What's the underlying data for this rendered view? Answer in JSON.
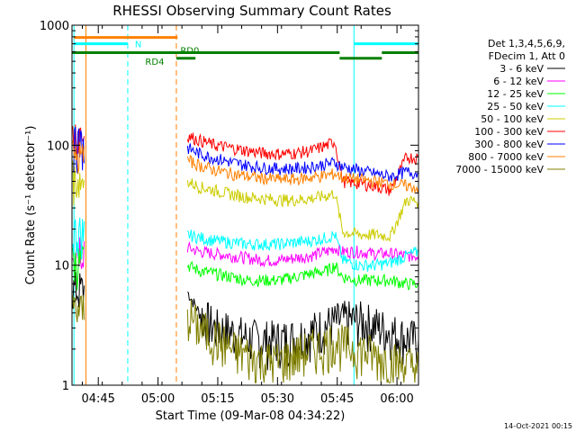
{
  "chart_data": {
    "type": "line",
    "title": "RHESSI Observing Summary Count Rates",
    "xlabel": "Start Time (09-Mar-08 04:34:22)",
    "ylabel": "Count Rate (s⁻¹ detector⁻¹)",
    "ylog": true,
    "ylim": [
      1,
      1000
    ],
    "xlim_minutes": [
      4.0,
      91.0
    ],
    "x_ticks": [
      {
        "label": "04:45",
        "min": 10.6
      },
      {
        "label": "05:00",
        "min": 25.6
      },
      {
        "label": "05:15",
        "min": 40.6
      },
      {
        "label": "05:30",
        "min": 55.6
      },
      {
        "label": "05:45",
        "min": 70.6
      },
      {
        "label": "06:00",
        "min": 85.6
      }
    ],
    "y_ticks": [
      {
        "label": "1",
        "v": 1
      },
      {
        "label": "10",
        "v": 10
      },
      {
        "label": "100",
        "v": 100
      },
      {
        "label": "1000",
        "v": 1000
      }
    ],
    "legend_header": [
      "Det 1,3,4,5,6,9,",
      "FDecim 1, Att 0"
    ],
    "legend_position": "right",
    "series": [
      {
        "name": "3 - 6 keV",
        "color": "#000000",
        "x": [
          33,
          36,
          40,
          44,
          48,
          52,
          56,
          60,
          64,
          68,
          72,
          76,
          80,
          84,
          88,
          91
        ],
        "y": [
          6,
          4,
          3,
          2.8,
          2.5,
          2.4,
          2.4,
          2.5,
          2.8,
          3.2,
          3.5,
          3.5,
          3.2,
          2.8,
          2.5,
          2.4
        ]
      },
      {
        "name": "6 - 12 keV",
        "color": "#ff00ff",
        "x": [
          33,
          36,
          40,
          44,
          48,
          52,
          56,
          60,
          64,
          68,
          70,
          72,
          76,
          80,
          84,
          88,
          91
        ],
        "y": [
          14,
          13,
          12.5,
          12,
          11.5,
          11,
          11,
          11.5,
          12,
          13,
          14,
          13,
          13,
          12.5,
          12.5,
          12,
          12
        ]
      },
      {
        "name": "12 - 25 keV",
        "color": "#00ff00",
        "x": [
          33,
          36,
          40,
          44,
          48,
          52,
          56,
          60,
          64,
          68,
          70,
          72,
          76,
          80,
          84,
          88,
          91
        ],
        "y": [
          10,
          9,
          8.5,
          8,
          7.5,
          7.5,
          7.5,
          8,
          8.5,
          9,
          10,
          8,
          7.5,
          7.5,
          7.5,
          7,
          7
        ]
      },
      {
        "name": "25 - 50 keV",
        "color": "#00ffff",
        "x": [
          33,
          36,
          40,
          44,
          48,
          52,
          56,
          60,
          64,
          68,
          70,
          72,
          76,
          80,
          84,
          88,
          91
        ],
        "y": [
          18,
          17,
          16,
          15.5,
          15,
          15,
          15,
          15.5,
          16,
          17,
          18,
          11,
          10,
          10,
          10.5,
          12,
          13
        ]
      },
      {
        "name": "50 - 100 keV",
        "color": "#cccc00",
        "x": [
          33,
          36,
          40,
          44,
          48,
          52,
          56,
          60,
          64,
          68,
          70,
          72,
          76,
          80,
          84,
          88,
          91
        ],
        "y": [
          50,
          45,
          42,
          39,
          37,
          36,
          35,
          35,
          36,
          38,
          40,
          19,
          18,
          18,
          17.5,
          35,
          34
        ]
      },
      {
        "name": "100 - 300 keV",
        "color": "#ff0000",
        "x": [
          33,
          36,
          40,
          44,
          48,
          52,
          56,
          60,
          64,
          68,
          70,
          72,
          76,
          80,
          84,
          88,
          91
        ],
        "y": [
          120,
          110,
          100,
          95,
          90,
          86,
          85,
          86,
          90,
          100,
          108,
          50,
          48,
          46,
          42,
          80,
          78
        ]
      },
      {
        "name": "300 - 800 keV",
        "color": "#0000ff",
        "x": [
          33,
          36,
          40,
          44,
          48,
          52,
          56,
          60,
          64,
          68,
          70,
          72,
          76,
          80,
          84,
          88,
          91
        ],
        "y": [
          95,
          85,
          78,
          72,
          68,
          65,
          64,
          64,
          66,
          70,
          72,
          66,
          62,
          58,
          55,
          60,
          58
        ]
      },
      {
        "name": "800 - 7000 keV",
        "color": "#ff8000",
        "x": [
          33,
          36,
          40,
          44,
          48,
          52,
          56,
          60,
          64,
          68,
          70,
          72,
          76,
          80,
          84,
          88,
          91
        ],
        "y": [
          75,
          68,
          62,
          58,
          55,
          53,
          52,
          52,
          54,
          56,
          58,
          54,
          52,
          50,
          48,
          46,
          44
        ]
      },
      {
        "name": "7000 - 15000 keV",
        "color": "#808000",
        "x": [
          33,
          36,
          40,
          44,
          48,
          52,
          56,
          60,
          64,
          68,
          70,
          72,
          76,
          80,
          84,
          88,
          91
        ],
        "y": [
          4,
          3,
          2.5,
          2,
          1.8,
          1.6,
          1.6,
          1.8,
          2,
          2.2,
          2.4,
          2.2,
          2,
          1.8,
          1.6,
          1.5,
          1.4
        ]
      }
    ],
    "vlines": [
      {
        "min": 4.5,
        "color": "#00ffff",
        "style": "solid"
      },
      {
        "min": 7.5,
        "color": "#ff8000",
        "style": "solid"
      },
      {
        "min": 18.0,
        "color": "#00ffff",
        "style": "dashed"
      },
      {
        "min": 30.2,
        "color": "#ff8000",
        "style": "dashed"
      },
      {
        "min": 74.8,
        "color": "#00ffff",
        "style": "solid"
      },
      {
        "min": 91.0,
        "color": "#00ffff",
        "style": "dashed"
      }
    ],
    "top_segments": [
      {
        "label": "",
        "color": "#ff8000",
        "y": 790,
        "ranges": [
          [
            4.5,
            30.5
          ]
        ]
      },
      {
        "label": "N",
        "color": "#00ffff",
        "y": 700,
        "ranges": [
          [
            4.5,
            18.0
          ],
          [
            74.8,
            91.0
          ]
        ]
      },
      {
        "label": "RD0",
        "color": "#008000",
        "y": 590,
        "ranges": [
          [
            4.0,
            71.2
          ],
          [
            81.8,
            91.0
          ]
        ]
      },
      {
        "label": "RD4",
        "color": "#008000",
        "y": 530,
        "ranges": [
          [
            30.2,
            35.0
          ],
          [
            71.2,
            81.8
          ]
        ]
      }
    ],
    "segment_labels": [
      {
        "text": "N",
        "min": 19.8,
        "y": 700,
        "color": "#00ffff"
      },
      {
        "text": "RD0",
        "min": 31.2,
        "y": 620,
        "color": "#008000"
      },
      {
        "text": "RD4",
        "min": 22.4,
        "y": 500,
        "color": "#008000"
      }
    ]
  },
  "footer": {
    "timestamp": "14-Oct-2021 00:15"
  }
}
